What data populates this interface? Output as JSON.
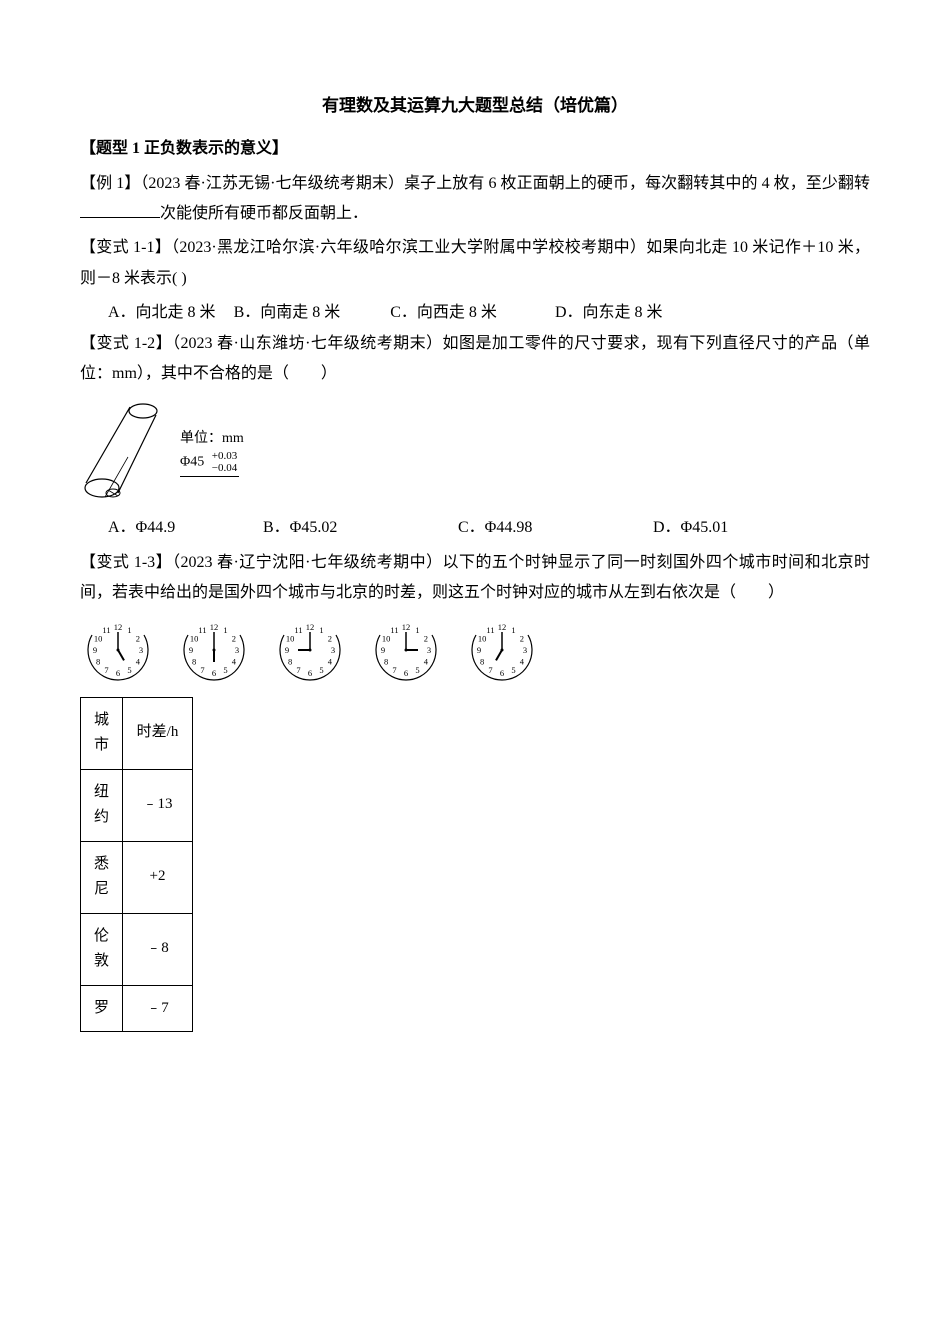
{
  "title": "有理数及其运算九大题型总结（培优篇）",
  "section1": {
    "heading": "【题型 1  正负数表示的意义】",
    "ex1_pre": "【例 1】（2023 春·江苏无锡·七年级统考期末）桌子上放有 6 枚正面朝上的硬币，每次翻转其中的 4 枚，至少翻转",
    "ex1_post": "次能使所有硬币都反面朝上．",
    "var11": "【变式 1-1】（2023·黑龙江哈尔滨·六年级哈尔滨工业大学附属中学校校考期中）如果向北走 10 米记作＋10 米，则－8 米表示(    )",
    "var11_opts": {
      "a": "A．向北走 8 米",
      "b": "B．向南走 8 米",
      "c": "C．向西走 8 米",
      "d": "D．向东走 8 米"
    },
    "var12": "【变式 1-2】（2023 春·山东潍坊·七年级统考期末）如图是加工零件的尺寸要求，现有下列直径尺寸的产品（单位：mm），其中不合格的是（　　）",
    "cylinder": {
      "unit_label": "单位：mm",
      "phi": "Φ45",
      "upper": "+0.03",
      "lower": "−0.04"
    },
    "var12_opts": {
      "a": "A．Φ44.9",
      "b": "B．Φ45.02",
      "c": "C．Φ44.98",
      "d": "D．Φ45.01"
    },
    "var13": "【变式 1-3】（2023 春·辽宁沈阳·七年级统考期中）以下的五个时钟显示了同一时刻国外四个城市时间和北京时间，若表中给出的是国外四个城市与北京的时差，则这五个时钟对应的城市从左到右依次是（　　）",
    "clocks": [
      {
        "hour": 5,
        "min": 0
      },
      {
        "hour": 6,
        "min": 0
      },
      {
        "hour": 9,
        "min": 0
      },
      {
        "hour": 3,
        "min": 0
      },
      {
        "hour": 7,
        "min": 0
      }
    ],
    "table": {
      "header_city": "城市",
      "header_tz": "时差/h",
      "rows": [
        {
          "city": "纽约",
          "tz": "﹣13"
        },
        {
          "city": "悉尼",
          "tz": "+2"
        },
        {
          "city": "伦敦",
          "tz": "﹣8"
        },
        {
          "city": "罗",
          "tz": "﹣7"
        }
      ]
    }
  },
  "clock_style": {
    "stroke": "#000000",
    "bg": "#ffffff",
    "numbers": [
      "12",
      "1",
      "2",
      "3",
      "4",
      "5",
      "6",
      "7",
      "8",
      "9",
      "10",
      "11"
    ]
  }
}
